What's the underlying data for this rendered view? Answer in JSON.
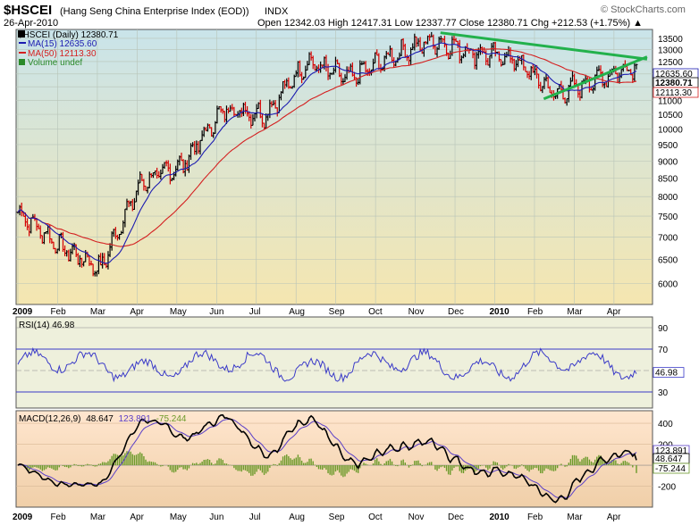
{
  "header": {
    "symbol": "$HSCEI",
    "name": "(Hang Seng China Enterprise Index (EOD))",
    "exchange": "INDX",
    "date": "26-Apr-2010",
    "watermark": "© StockCharts.com",
    "ohlc": "Open 12342.03  High 12417.31  Low 12337.77  Close 12380.71  Chg +212.53 (+1.75%) ▲"
  },
  "legend": {
    "price": "$HSCEI (Daily) 12380.71",
    "ma15": "MA(15) 12635.60",
    "ma50": "MA(50) 12113.30",
    "volume": "Volume undef"
  },
  "colors": {
    "price_bg_top": "#c9e4ea",
    "price_bg_bottom": "#f5e6b0",
    "rsi_bg": "#eef0dc",
    "macd_bg_top": "#ffe6cf",
    "macd_bg_bottom": "#f3d3b0",
    "up_bar": "#000000",
    "down_bar": "#d40000",
    "ma15": "#1b1bb0",
    "ma50": "#d42020",
    "trendline": "#22b14c",
    "rsi_line": "#3a3ac8",
    "macd_line": "#000000",
    "signal_line": "#5a3fc8",
    "hist": "#6b9a2a"
  },
  "chart_data": [
    {
      "type": "ohlc",
      "title": "$HSCEI (Hang Seng China Enterprise Index (EOD))",
      "x_labels": [
        "2009",
        "Feb",
        "Mar",
        "Apr",
        "May",
        "Jun",
        "Jul",
        "Aug",
        "Sep",
        "Oct",
        "Nov",
        "Dec",
        "2010",
        "Feb",
        "Mar",
        "Apr"
      ],
      "y_ticks": [
        6000,
        6500,
        7000,
        7500,
        8000,
        8500,
        9000,
        9500,
        10000,
        10500,
        11000,
        11500,
        12000,
        12500,
        13000,
        13500
      ],
      "ylim": [
        5600,
        13900
      ],
      "log_scale": true,
      "monthly_close_approx": [
        7600,
        6800,
        6300,
        8400,
        8900,
        10700,
        10500,
        12500,
        11800,
        12700,
        13400,
        12900,
        12600,
        11200,
        11800,
        12380.71
      ],
      "last_labels": [
        "12635.60",
        "12380.71",
        "12113.30"
      ],
      "trendlines": [
        {
          "from_date": "2009-11-20",
          "from": 13750,
          "to_date": "2010-04-26",
          "to": 12600
        },
        {
          "from_date": "2010-02-08",
          "from": 11050,
          "to_date": "2010-04-26",
          "to": 12700
        }
      ]
    },
    {
      "type": "line",
      "title": "RSI(14) 46.98",
      "y_ticks": [
        30,
        50,
        70,
        90
      ],
      "ylim": [
        15,
        100
      ],
      "value": 46.98,
      "last_label": "46.98"
    },
    {
      "type": "line",
      "title": "MACD(12,26,9)",
      "macd": 48.647,
      "signal": 123.891,
      "histogram": -75.244,
      "y_ticks": [
        -200,
        0,
        200,
        400
      ],
      "ylim": [
        -400,
        520
      ],
      "last_labels": [
        "123.891",
        "48.647",
        "-75.244"
      ]
    }
  ],
  "macd_title": {
    "name": "MACD(12,26,9)",
    "macd": "48.647",
    "signal": "123.891",
    "hist": "-75.244"
  }
}
